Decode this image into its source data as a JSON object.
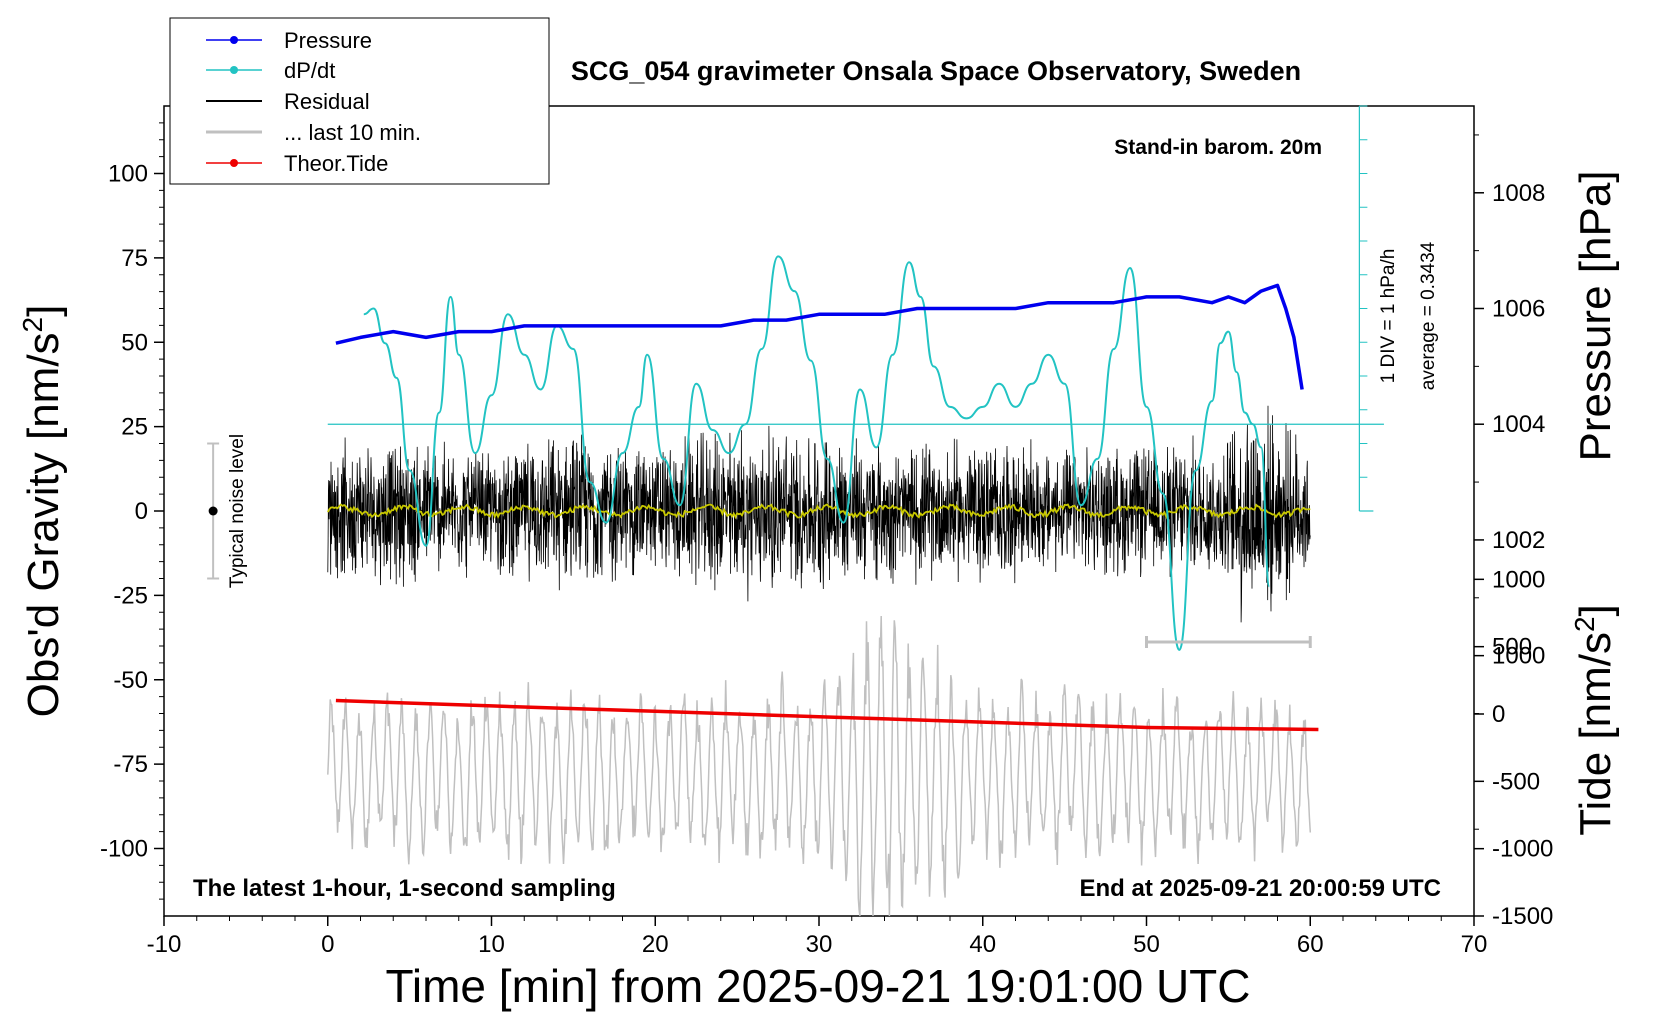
{
  "chart_data": {
    "type": "line",
    "title": "SCG_054 gravimeter Onsala Space Observatory, Sweden",
    "xlabel": "Time [min] from 2025-09-21 19:01:00 UTC",
    "ylabel_left": "Obs'd Gravity [nm/s",
    "ylabel_left_sup": "2",
    "ylabel_left_close": "]",
    "ylabel_right_pressure": "Pressure [hPa]",
    "ylabel_right_tide": "Tide [nm/s",
    "ylabel_right_tide_sup": "2",
    "ylabel_right_tide_close": "]",
    "xlim": [
      -10,
      70
    ],
    "ylim": [
      -120,
      120
    ],
    "pressure_lim": [
      995.5,
      1009.5
    ],
    "tide_lim": [
      -1500,
      1500
    ],
    "x_ticks": [
      "-10",
      "0",
      "10",
      "20",
      "30",
      "40",
      "50",
      "60",
      "70"
    ],
    "y_ticks_left": [
      "100",
      "75",
      "50",
      "25",
      "0",
      "-25",
      "-50",
      "-75",
      "-100"
    ],
    "pressure_ticks": [
      "1008",
      "1006",
      "1004",
      "1002",
      "1000"
    ],
    "tide_ticks": [
      "1000",
      "500",
      "0",
      "-500",
      "-1000",
      "-1500"
    ],
    "annotations": {
      "barometer": "Stand-in barom. 20m",
      "scale_div": "1 DIV = 1 hPa/h",
      "scale_avg": "average = 0.3434",
      "noise": "Typical noise level",
      "bottom_left": "The latest 1-hour, 1-second sampling",
      "bottom_right": "End at 2025-09-21 20:00:59 UTC"
    },
    "grid": false,
    "legend_position": "top-left",
    "legend": [
      "Pressure",
      "dP/dt",
      "Residual",
      "... last 10 min.",
      "Theor.Tide"
    ],
    "colors": {
      "pressure": "#0000ee",
      "dpdt": "#22c3c3",
      "residual": "#000000",
      "residual_smooth": "#c8c800",
      "last10": "#c0c0c0",
      "tide": "#ee0000"
    },
    "series": {
      "pressure": {
        "x": [
          0.5,
          2,
          4,
          6,
          8,
          10,
          12,
          14,
          16,
          18,
          20,
          22,
          24,
          26,
          28,
          30,
          32,
          34,
          36,
          38,
          40,
          42,
          44,
          46,
          48,
          50,
          52,
          54,
          55,
          56,
          57,
          58,
          58.5,
          59,
          59.5
        ],
        "y": [
          1005.4,
          1005.5,
          1005.6,
          1005.5,
          1005.6,
          1005.6,
          1005.7,
          1005.7,
          1005.7,
          1005.7,
          1005.7,
          1005.7,
          1005.7,
          1005.8,
          1005.8,
          1005.9,
          1005.9,
          1005.9,
          1006.0,
          1006.0,
          1006.0,
          1006.0,
          1006.1,
          1006.1,
          1006.1,
          1006.2,
          1006.2,
          1006.1,
          1006.2,
          1006.1,
          1006.3,
          1006.4,
          1006.0,
          1005.5,
          1004.6
        ]
      },
      "dpdt": {
        "x": [
          2.2,
          2.8,
          3.5,
          4.2,
          5,
          6,
          6.8,
          7.5,
          8,
          9,
          10,
          11,
          12,
          13,
          14,
          15,
          16,
          17,
          18,
          19,
          19.5,
          20.5,
          21.5,
          22.5,
          23.5,
          24.5,
          25.5,
          26.5,
          27.5,
          28.5,
          29.5,
          30.5,
          31.5,
          32.5,
          33.5,
          34.5,
          35.5,
          36.2,
          37,
          38,
          39,
          40,
          41,
          42,
          43,
          44,
          45,
          46,
          47,
          48,
          49,
          50,
          51,
          52,
          53,
          54,
          54.5,
          55,
          55.5,
          56,
          56.5,
          57,
          57.5
        ],
        "y": [
          1005.9,
          1006.0,
          1005.4,
          1004.8,
          1003.2,
          1001.9,
          1004.2,
          1006.2,
          1005.2,
          1003.5,
          1004.5,
          1005.9,
          1005.2,
          1004.6,
          1005.7,
          1005.3,
          1003.0,
          1002.3,
          1003.5,
          1004.3,
          1005.2,
          1003.4,
          1002.6,
          1004.7,
          1003.9,
          1003.5,
          1004.0,
          1005.3,
          1006.9,
          1006.3,
          1005.1,
          1003.4,
          1002.3,
          1004.6,
          1003.6,
          1005.2,
          1006.8,
          1006.2,
          1005.0,
          1004.3,
          1004.1,
          1004.3,
          1004.7,
          1004.3,
          1004.7,
          1005.2,
          1004.7,
          1002.6,
          1003.4,
          1005.3,
          1006.7,
          1004.3,
          1002.8,
          1000.1,
          1003.2,
          1004.4,
          1005.4,
          1005.6,
          1004.9,
          1004.2,
          1004.0,
          1003.6,
          1001.2
        ]
      },
      "residual_amplitude": {
        "x": [
          0,
          5,
          10,
          15,
          20,
          25,
          30,
          35,
          40,
          45,
          50,
          55,
          56,
          60
        ],
        "y": [
          22,
          24,
          20,
          26,
          22,
          28,
          26,
          22,
          24,
          20,
          22,
          24,
          40,
          22
        ]
      },
      "tide": {
        "x": [
          0.5,
          10,
          20,
          30,
          40,
          50,
          60.5
        ],
        "y": [
          100,
          60,
          20,
          -20,
          -60,
          -100,
          -115
        ]
      },
      "last10_amplitude": {
        "x": [
          0,
          10,
          20,
          30,
          34,
          40,
          50,
          60
        ],
        "y": [
          600,
          700,
          650,
          700,
          1400,
          700,
          650,
          600
        ]
      },
      "dpdt_baseline": 1004,
      "last10_bar": [
        50,
        60
      ],
      "noise_bar": [
        20,
        -20
      ]
    }
  }
}
